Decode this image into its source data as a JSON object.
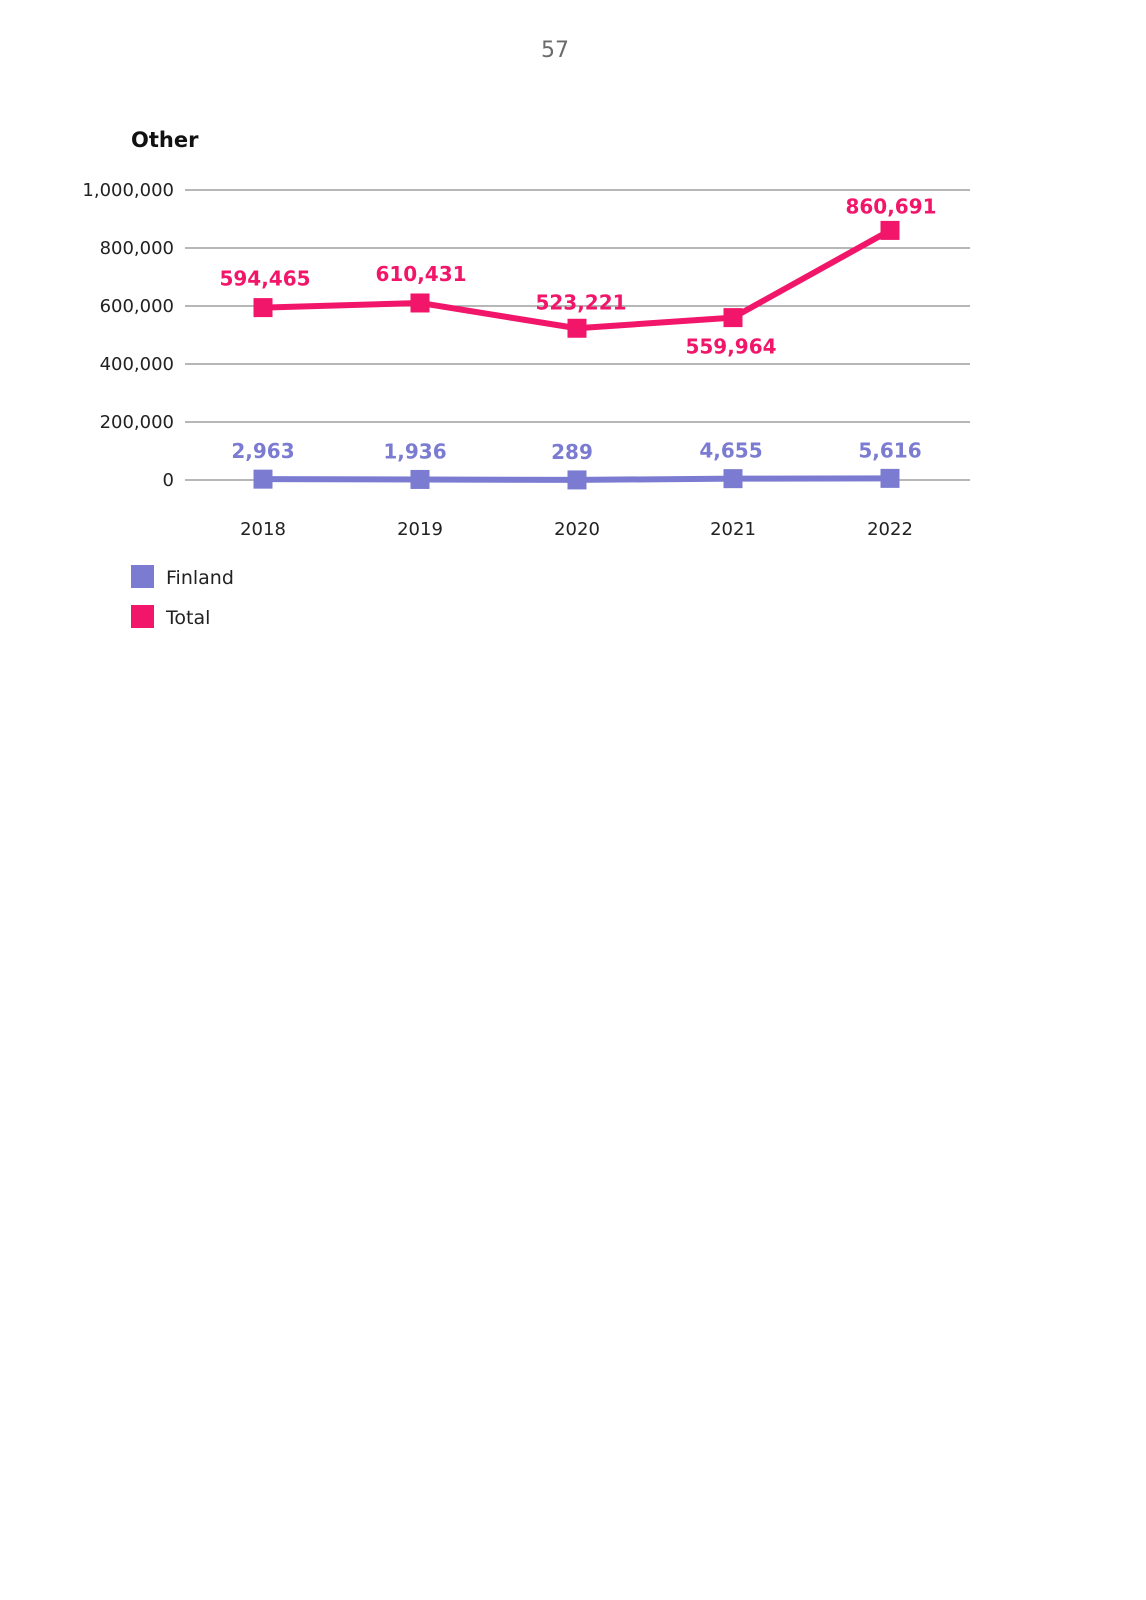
{
  "page": {
    "number": "57"
  },
  "chart_data": {
    "type": "line",
    "title": "Other",
    "xlabel": "",
    "ylabel": "",
    "categories": [
      "2018",
      "2019",
      "2020",
      "2021",
      "2022"
    ],
    "ylim": [
      0,
      1000000
    ],
    "yticks": [
      0,
      200000,
      400000,
      600000,
      800000,
      1000000
    ],
    "ytick_labels": [
      "0",
      "200,000",
      "400,000",
      "600,000",
      "800,000",
      "1,000,000"
    ],
    "grid": true,
    "legend": "bottom-left",
    "series": [
      {
        "name": "Finland",
        "color": "#7b7bd1",
        "values": [
          2963,
          1936,
          289,
          4655,
          5616
        ],
        "labels": [
          "2,963",
          "1,936",
          "289",
          "4,655",
          "5,616"
        ]
      },
      {
        "name": "Total",
        "color": "#f2166a",
        "values": [
          594465,
          610431,
          523221,
          559964,
          860691
        ],
        "labels": [
          "594,465",
          "610,431",
          "523,221",
          "559,964",
          "860,691"
        ]
      }
    ]
  }
}
